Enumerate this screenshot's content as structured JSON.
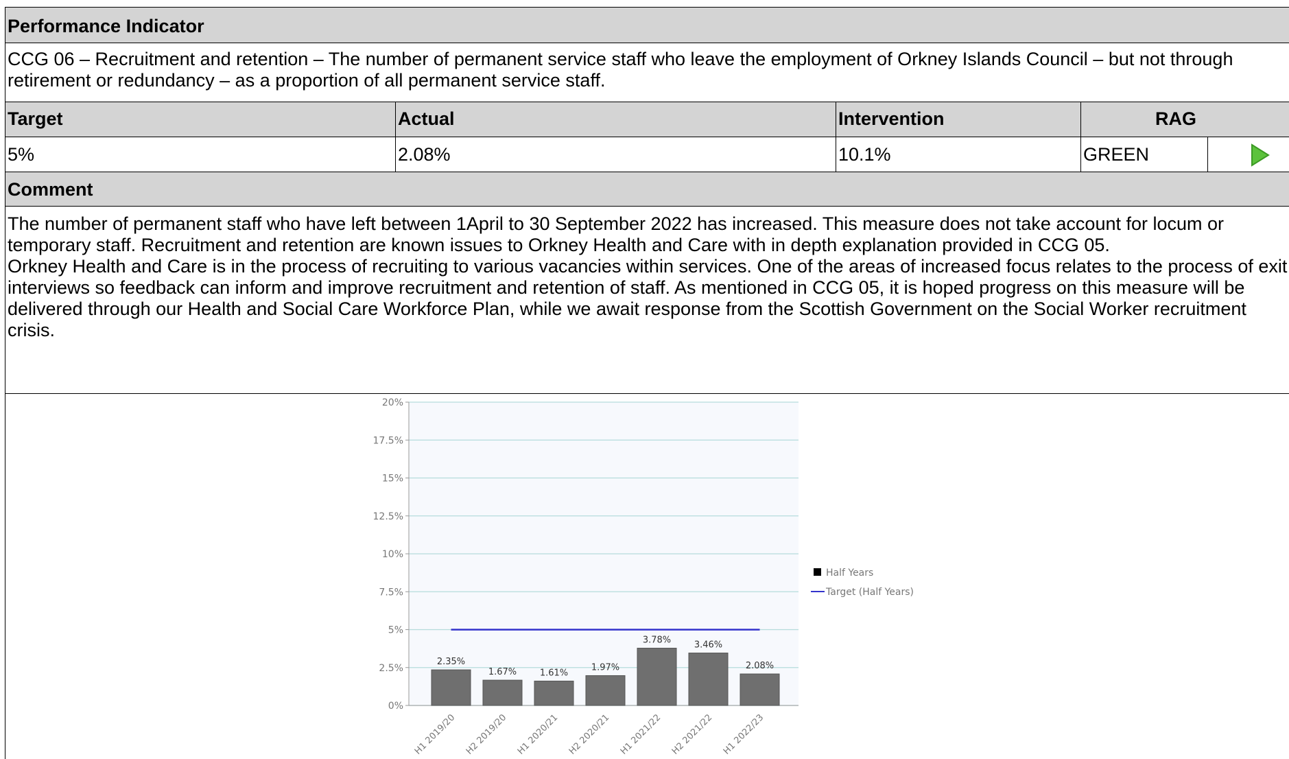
{
  "header": {
    "title": "Performance Indicator"
  },
  "indicator": {
    "description": "CCG 06 – Recruitment and retention – The number of permanent service staff who leave the employment of Orkney Islands Council – but not through retirement or redundancy – as a proportion of all permanent service staff."
  },
  "table": {
    "headers": [
      "Target",
      "Actual",
      "Intervention",
      "RAG"
    ],
    "row": [
      "5%",
      "2.08%",
      "10.1%",
      "GREEN"
    ]
  },
  "comment": {
    "title": "Comment",
    "paragraphs": [
      "The number of permanent staff who have left between 1April to 30 September 2022 has increased. This measure does not take account for locum or temporary staff. Recruitment and retention are known issues to Orkney Health and Care with in depth explanation provided in CCG 05.",
      "Orkney Health and Care is in the process of recruiting to various vacancies within services. One of the areas of increased focus relates to the process of exit interviews so feedback can inform and improve recruitment and retention of staff. As mentioned in CCG 05, it is hoped progress on this measure will be delivered through our Health and Social Care Workforce Plan, while we await response from the Scottish Government on the Social Worker recruitment crisis."
    ]
  },
  "chart_data": {
    "type": "bar",
    "categories": [
      "H1 2019/20",
      "H2 2019/20",
      "H1 2020/21",
      "H2 2020/21",
      "H1 2021/22",
      "H2 2021/22",
      "H1 2022/23"
    ],
    "series": [
      {
        "name": "Half Years",
        "color": "#6f6f6f",
        "type": "bar",
        "values": [
          2.35,
          1.67,
          1.61,
          1.97,
          3.78,
          3.46,
          2.08
        ],
        "value_labels": [
          "2.35%",
          "1.67%",
          "1.61%",
          "1.97%",
          "3.78%",
          "3.46%",
          "2.08%"
        ]
      },
      {
        "name": "Target (Half Years)",
        "color": "#3333cc",
        "type": "line",
        "values": [
          5,
          5,
          5,
          5,
          5,
          5,
          5
        ]
      }
    ],
    "ylim": [
      0,
      20
    ],
    "yticks": [
      {
        "value": 0,
        "label": "0%"
      },
      {
        "value": 2.5,
        "label": "2.5%"
      },
      {
        "value": 5,
        "label": "5%"
      },
      {
        "value": 7.5,
        "label": "7.5%"
      },
      {
        "value": 10,
        "label": "10%"
      },
      {
        "value": 12.5,
        "label": "12.5%"
      },
      {
        "value": 15,
        "label": "15%"
      },
      {
        "value": 17.5,
        "label": "17.5%"
      },
      {
        "value": 20,
        "label": "20%"
      }
    ],
    "grid": true,
    "legend": "right"
  }
}
